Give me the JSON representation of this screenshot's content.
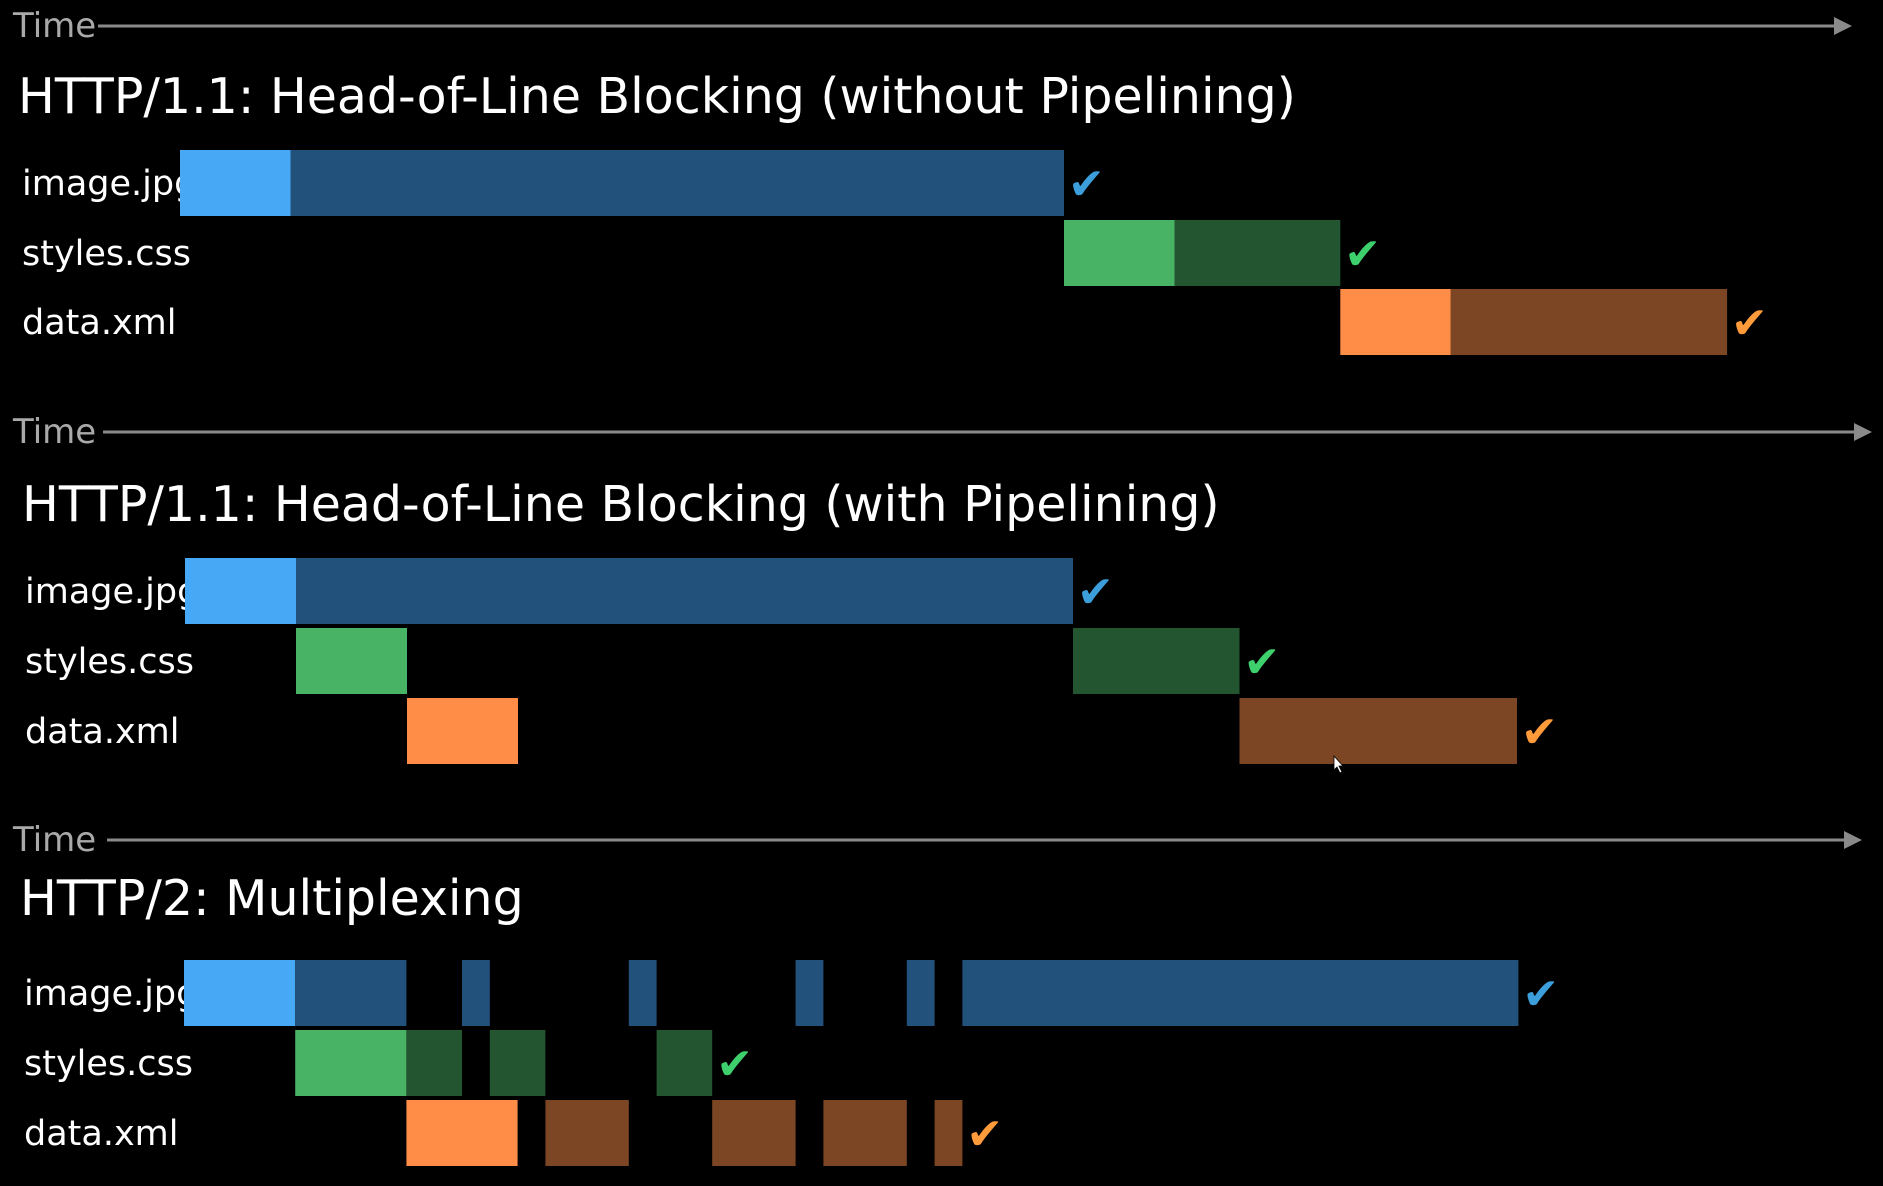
{
  "colors": {
    "background": "#000000",
    "axis": "#8a8a8a",
    "axis_label": "#a9a9a9",
    "image_request": "#47a9f5",
    "image_response": "#22517c",
    "image_check": "#3c9fdc",
    "styles_request": "#48b265",
    "styles_response": "#235530",
    "styles_check": "#3ed06c",
    "data_request": "#ff8c47",
    "data_response": "#7c4624",
    "data_check": "#ff9b3a"
  },
  "check_glyph": "✔",
  "cursor_icon": "mouse-pointer-icon",
  "panels": [
    {
      "time_label": "Time",
      "title": "HTTP/1.1:  Head-of-Line Blocking   (without Pipelining)",
      "rows": [
        {
          "label": "image.jpg",
          "resource": "image",
          "segments": [
            {
              "kind": "request",
              "start": 0,
              "end": 1
            },
            {
              "kind": "response",
              "start": 1,
              "end": 8
            }
          ],
          "done": 8
        },
        {
          "label": "styles.css",
          "resource": "styles",
          "segments": [
            {
              "kind": "request",
              "start": 8,
              "end": 9
            },
            {
              "kind": "response",
              "start": 9,
              "end": 10.5
            }
          ],
          "done": 10.5
        },
        {
          "label": "data.xml",
          "resource": "data",
          "segments": [
            {
              "kind": "request",
              "start": 10.5,
              "end": 11.5
            },
            {
              "kind": "response",
              "start": 11.5,
              "end": 14
            }
          ],
          "done": 14
        }
      ]
    },
    {
      "time_label": "Time",
      "title": "HTTP/1.1:  Head-of-Line Blocking   (with Pipelining)",
      "rows": [
        {
          "label": "image.jpg",
          "resource": "image",
          "segments": [
            {
              "kind": "request",
              "start": 0,
              "end": 1
            },
            {
              "kind": "response",
              "start": 1,
              "end": 8
            }
          ],
          "done": 8
        },
        {
          "label": "styles.css",
          "resource": "styles",
          "segments": [
            {
              "kind": "request",
              "start": 1,
              "end": 2
            },
            {
              "kind": "response",
              "start": 8,
              "end": 9.5
            }
          ],
          "done": 9.5
        },
        {
          "label": "data.xml",
          "resource": "data",
          "segments": [
            {
              "kind": "request",
              "start": 2,
              "end": 3
            },
            {
              "kind": "response",
              "start": 9.5,
              "end": 12
            }
          ],
          "done": 12
        }
      ]
    },
    {
      "time_label": "Time",
      "title": "HTTP/2:  Multiplexing",
      "rows": [
        {
          "label": "image.jpg",
          "resource": "image",
          "segments": [
            {
              "kind": "request",
              "start": 0,
              "end": 1
            },
            {
              "kind": "response",
              "start": 1,
              "end": 2
            },
            {
              "kind": "response",
              "start": 2.5,
              "end": 2.75
            },
            {
              "kind": "response",
              "start": 4,
              "end": 4.25
            },
            {
              "kind": "response",
              "start": 5.5,
              "end": 5.75
            },
            {
              "kind": "response",
              "start": 6.5,
              "end": 6.75
            },
            {
              "kind": "response",
              "start": 7,
              "end": 12
            }
          ],
          "done": 12
        },
        {
          "label": "styles.css",
          "resource": "styles",
          "segments": [
            {
              "kind": "request",
              "start": 1,
              "end": 2
            },
            {
              "kind": "response",
              "start": 2,
              "end": 2.5
            },
            {
              "kind": "response",
              "start": 2.75,
              "end": 3.25
            },
            {
              "kind": "response",
              "start": 4.25,
              "end": 4.75
            }
          ],
          "done": 4.75
        },
        {
          "label": "data.xml",
          "resource": "data",
          "segments": [
            {
              "kind": "request",
              "start": 2,
              "end": 3
            },
            {
              "kind": "response",
              "start": 3.25,
              "end": 4
            },
            {
              "kind": "response",
              "start": 4.75,
              "end": 5.5
            },
            {
              "kind": "response",
              "start": 5.75,
              "end": 6.5
            },
            {
              "kind": "response",
              "start": 6.75,
              "end": 7
            }
          ],
          "done": 7
        }
      ]
    }
  ]
}
